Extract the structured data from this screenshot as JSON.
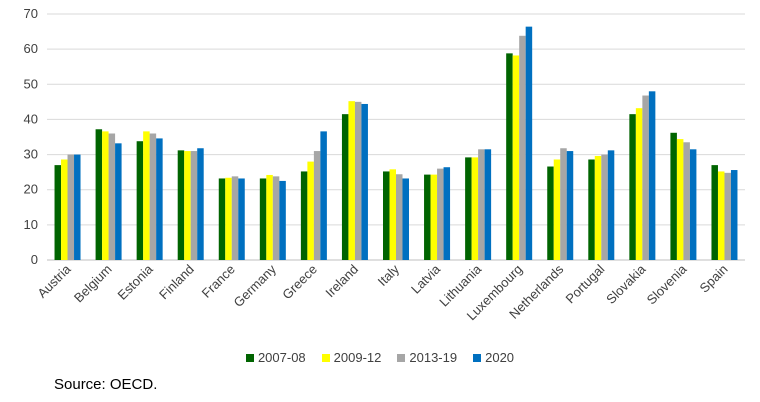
{
  "chart_data": {
    "type": "bar",
    "title": "",
    "xlabel": "",
    "ylabel": "",
    "ylim": [
      0,
      70
    ],
    "yticks": [
      0,
      10,
      20,
      30,
      40,
      50,
      60,
      70
    ],
    "grid": true,
    "legend_position": "bottom",
    "categories": [
      "Austria",
      "Belgium",
      "Estonia",
      "Finland",
      "France",
      "Germany",
      "Greece",
      "Ireland",
      "Italy",
      "Latvia",
      "Lithuania",
      "Luxembourg",
      "Netherlands",
      "Portugal",
      "Slovakia",
      "Slovenia",
      "Spain"
    ],
    "series": [
      {
        "name": "2007-08",
        "color": "#006400",
        "values": [
          27.0,
          37.2,
          33.8,
          31.2,
          23.2,
          23.2,
          25.2,
          41.5,
          25.2,
          24.3,
          29.2,
          58.8,
          26.6,
          28.6,
          41.5,
          36.2,
          27.0
        ]
      },
      {
        "name": "2009-12",
        "color": "#FFFF00",
        "values": [
          28.6,
          36.6,
          36.6,
          31.0,
          23.4,
          24.2,
          28.0,
          45.2,
          25.8,
          24.3,
          29.2,
          58.2,
          28.6,
          29.6,
          43.2,
          34.4,
          25.2
        ]
      },
      {
        "name": "2013-19",
        "color": "#A6A6A6",
        "values": [
          30.0,
          36.0,
          36.0,
          31.0,
          23.8,
          23.8,
          31.0,
          45.0,
          24.4,
          26.0,
          31.5,
          63.8,
          31.8,
          30.0,
          46.8,
          33.5,
          24.8
        ]
      },
      {
        "name": "2020",
        "color": "#0070C0",
        "values": [
          30.0,
          33.2,
          34.6,
          31.8,
          23.2,
          22.5,
          36.6,
          44.4,
          23.2,
          26.4,
          31.5,
          66.4,
          31.0,
          31.2,
          48.0,
          31.5,
          25.6
        ]
      }
    ]
  },
  "source": "Source: OECD."
}
